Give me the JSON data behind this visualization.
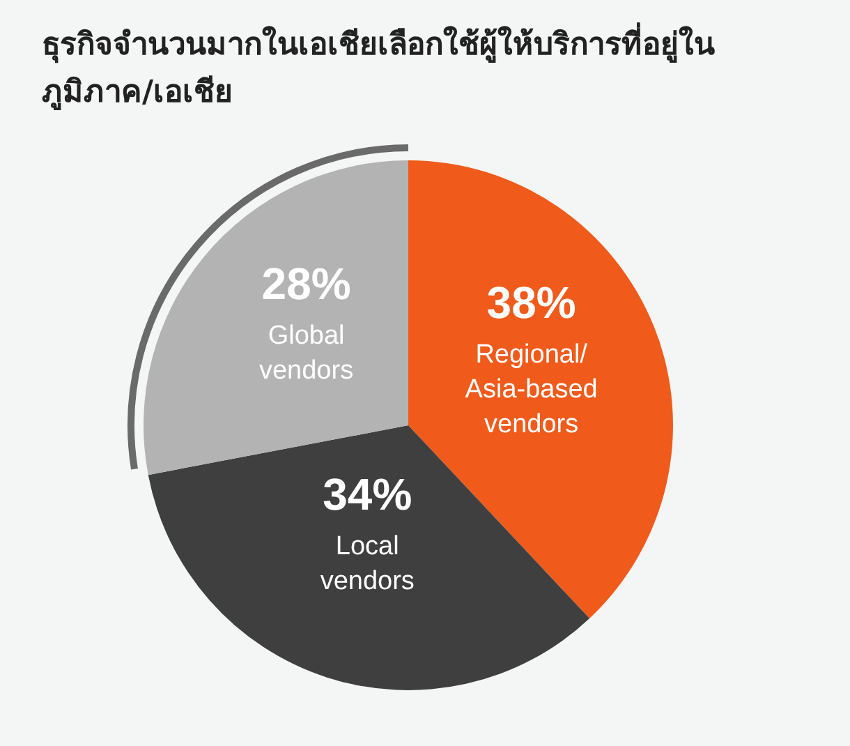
{
  "chart_data": {
    "type": "pie",
    "title": "ธุรกิจจำนวนมากในเอเชียเลือกใช้ผู้ให้บริการที่อยู่ในภูมิภาค/เอเชีย",
    "categories": [
      "Regional/ Asia-based vendors",
      "Local vendors",
      "Global vendors"
    ],
    "values": [
      38,
      34,
      28
    ],
    "value_labels": [
      "38%",
      "34%",
      "28%"
    ],
    "colors": [
      "#f05a1a",
      "#3f3f3f",
      "#b3b3b3"
    ]
  }
}
